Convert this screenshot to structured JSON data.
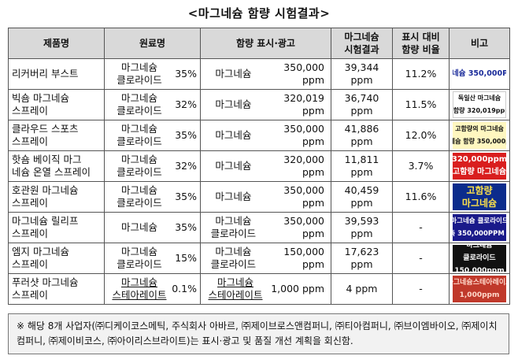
{
  "title": "<마그네슘 함량 시험결과>",
  "headers": {
    "product": "제품명",
    "ingredient": "원료명",
    "labeled": "함량 표시·광고",
    "test_result": "마그네슘\n시험결과",
    "ratio": "표시 대비\n함량 비율",
    "note": "비고"
  },
  "rows": [
    {
      "product": "리커버리 부스트",
      "ingredient": "마그네슘\n클로라이드",
      "ingredient_pct": "35%",
      "label_name": "마그네슘",
      "labeled_ppm": "350,000 ppm",
      "result": "39,344 ppm",
      "ratio": "11.2%",
      "note_lines": [
        "마그네슘 350,000PPM"
      ]
    },
    {
      "product": "빅숌 마그네슘\n스프레이",
      "ingredient": "마그네슘\n클로라이드",
      "ingredient_pct": "32%",
      "label_name": "마그네슘",
      "labeled_ppm": "320,019 ppm",
      "result": "36,740 ppm",
      "ratio": "11.5%",
      "note_lines": [
        "독일산 마그네슘",
        "고함량 320,019ppm"
      ]
    },
    {
      "product": "클라우드 스포츠\n스프레이",
      "ingredient": "마그네슘\n클로라이드",
      "ingredient_pct": "35%",
      "label_name": "마그네슘",
      "labeled_ppm": "350,000 ppm",
      "result": "41,886 ppm",
      "ratio": "12.0%",
      "note_lines": [
        "고함량의 마그네슘",
        "마그네슘 함량 350,000ppm"
      ]
    },
    {
      "product": "핫숌 베이직 마그\n네슘 온열 스프레이",
      "ingredient": "마그네슘\n클로라이드",
      "ingredient_pct": "32%",
      "label_name": "마그네슘",
      "labeled_ppm": "320,000 ppm",
      "result": "11,811 ppm",
      "ratio": "3.7%",
      "note_lines": [
        "320,000ppm",
        "고함량 마그네슘"
      ]
    },
    {
      "product": "호관원 마그네슘\n스프레이",
      "ingredient": "마그네슘\n클로라이드",
      "ingredient_pct": "35%",
      "label_name": "마그네슘",
      "labeled_ppm": "350,000 ppm",
      "result": "40,459 ppm",
      "ratio": "11.6%",
      "note_lines": [
        "고함량",
        "마그네슘"
      ]
    },
    {
      "product": "마그네슘 릴리프\n스프레이",
      "ingredient": "마그네슘",
      "ingredient_pct": "35%",
      "label_name": "마그네슘\n클로라이드",
      "labeled_ppm": "350,000 ppm",
      "result": "39,593 ppm",
      "ratio": "-",
      "note_lines": [
        "마그네슘 클로라이드",
        "고농축 350,000PPM 함유!"
      ]
    },
    {
      "product": "엠지 마그네슘\n스프레이",
      "ingredient": "마그네슘\n클로라이드",
      "ingredient_pct": "15%",
      "label_name": "마그네슘\n클로라이드",
      "labeled_ppm": "150,000 ppm",
      "result": "17,623 ppm",
      "ratio": "-",
      "note_lines": [
        "마그네슘",
        "클로라이드",
        "150,000ppm"
      ]
    },
    {
      "product": "푸러샷 마그네슘\n스프레이",
      "ingredient": "마그네슘\n스테아레이트",
      "ingredient_pct": "0.1%",
      "label_name": "마그네슘\n스테아레이트",
      "labeled_ppm": "1,000 ppm",
      "result": "4 ppm",
      "ratio": "-",
      "note_lines": [
        "마그네슘스테아레이트",
        "1,000ppm"
      ]
    }
  ],
  "footnote": "※ 해당 8개 사업자(㈜디케이코스메틱, 주식회사 아바르, ㈜제이브로스앤컴퍼니, ㈜티아컴퍼니, ㈜브이엠바이오, ㈜제이치컴퍼니, ㈜제이비코스, ㈜아이리스브라이트)는 표시·광고 및 품질 개선 계획을 회신함."
}
